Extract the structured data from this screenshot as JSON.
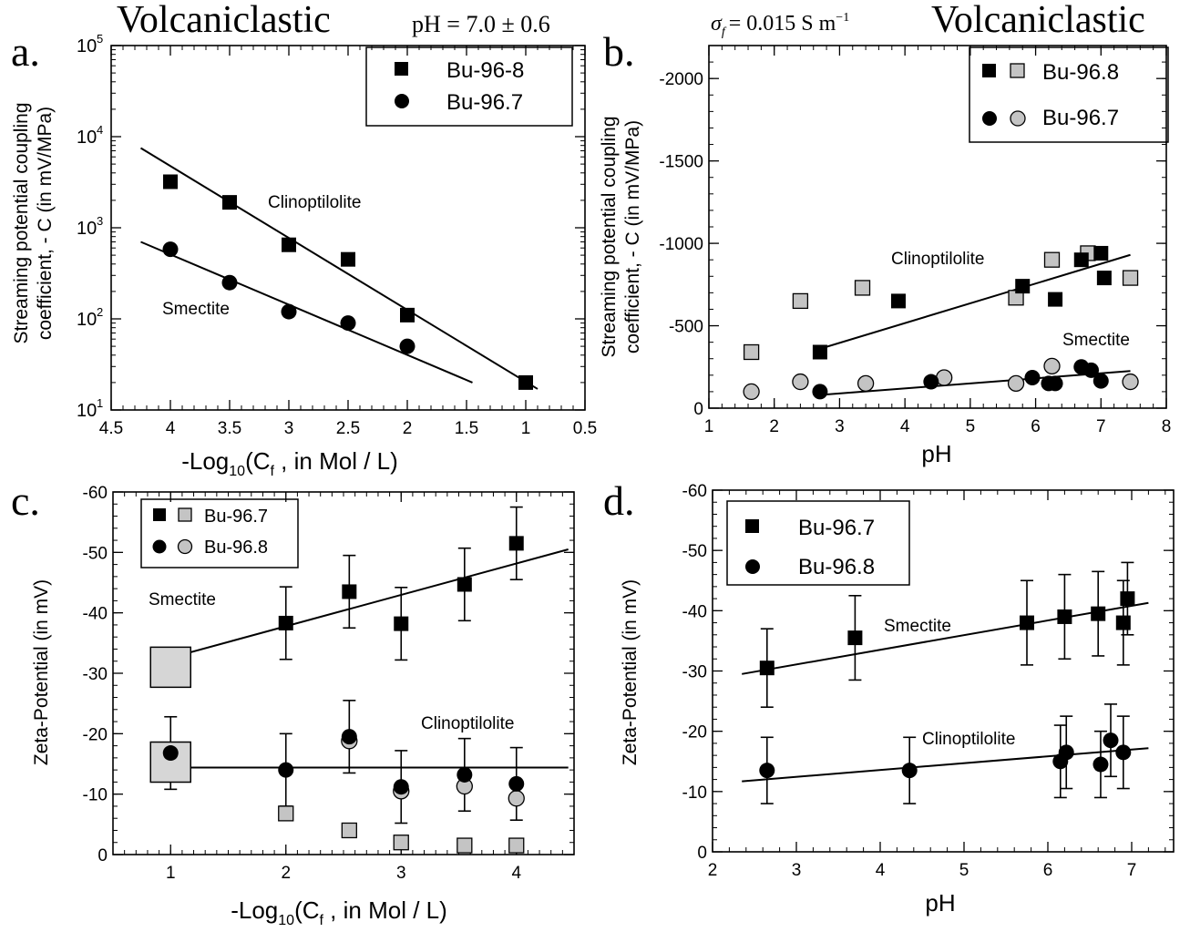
{
  "figure": {
    "panel_a_header": {
      "left": "Volcaniclastic",
      "right": "pH = 7.0 ± 0.6"
    },
    "panel_b_header": {
      "sigma_symbol": "σ",
      "sigma_sub": "f",
      "sigma_value": "= 0.015  S m",
      "sigma_exp": "−1",
      "right": "Volcaniclastic"
    }
  },
  "chart_data": [
    {
      "panel": "a.",
      "type": "scatter",
      "xlabel": "-Log10(Cf , in Mol / L)",
      "ylabel_line1": "Streaming potential coupling",
      "ylabel_line2": "coefficient, - C (in mV/MPa)",
      "xlim": [
        4.5,
        0.5
      ],
      "xticks": [
        "4.5",
        "4",
        "3.5",
        "3",
        "2.5",
        "2",
        "1.5",
        "1",
        "0.5"
      ],
      "yscale": "log",
      "ylim": [
        10,
        100000
      ],
      "yticks": [
        "10",
        "10",
        "10",
        "10",
        "10"
      ],
      "yticks_exp": [
        "1",
        "2",
        "3",
        "4",
        "5"
      ],
      "legend": {
        "position": "top-right",
        "entries": [
          "Bu-96-8",
          "Bu-96.7"
        ]
      },
      "annotations": [
        "Clinoptilolite",
        "Smectite"
      ],
      "series": [
        {
          "name": "Bu-96-8",
          "marker": "square-black",
          "x": [
            4,
            3.5,
            3,
            2.5,
            2,
            1
          ],
          "y": [
            3200,
            1900,
            650,
            450,
            110,
            20
          ]
        },
        {
          "name": "Bu-96.7",
          "marker": "circle-black",
          "x": [
            4,
            3.5,
            3,
            2.5,
            2
          ],
          "y": [
            580,
            250,
            120,
            90,
            50
          ]
        }
      ],
      "fit_lines": [
        {
          "x": [
            4.25,
            0.9
          ],
          "y": [
            7500,
            17
          ]
        },
        {
          "x": [
            4.25,
            1.45
          ],
          "y": [
            700,
            20
          ]
        }
      ]
    },
    {
      "panel": "b.",
      "type": "scatter",
      "xlabel": "pH",
      "ylabel_line1": "Streaming potential coupling",
      "ylabel_line2": "coefficient, - C (in mV/MPa)",
      "xlim": [
        1,
        8
      ],
      "xticks": [
        "1",
        "2",
        "3",
        "4",
        "5",
        "6",
        "7",
        "8"
      ],
      "ylim": [
        0,
        -2200
      ],
      "yticks": [
        "0",
        "-500",
        "-1000",
        "-1500",
        "-2000"
      ],
      "yticks_values": [
        0,
        -500,
        -1000,
        -1500,
        -2000
      ],
      "legend": {
        "position": "top-right",
        "entries": [
          "Bu-96.8",
          "Bu-96.7"
        ]
      },
      "annotations": [
        "Clinoptilolite",
        "Smectite"
      ],
      "series": [
        {
          "name": "Bu-96.8",
          "marker": "square-black",
          "x": [
            2.7,
            3.9,
            5.8,
            6.3,
            6.7,
            7.0,
            7.05
          ],
          "y": [
            -340,
            -650,
            -740,
            -660,
            -900,
            -940,
            -790
          ]
        },
        {
          "name": "Bu-96.8",
          "marker": "square-gray",
          "x": [
            1.65,
            2.4,
            3.35,
            5.7,
            6.25,
            6.8,
            7.45
          ],
          "y": [
            -340,
            -650,
            -730,
            -670,
            -900,
            -940,
            -790
          ]
        },
        {
          "name": "Bu-96.7",
          "marker": "circle-black",
          "x": [
            2.7,
            4.4,
            5.95,
            6.2,
            6.3,
            6.7,
            6.85,
            7.0
          ],
          "y": [
            -100,
            -160,
            -185,
            -150,
            -150,
            -250,
            -230,
            -165
          ]
        },
        {
          "name": "Bu-96.7",
          "marker": "circle-gray",
          "x": [
            1.65,
            2.4,
            3.4,
            4.6,
            5.7,
            6.25,
            7.45
          ],
          "y": [
            -100,
            -160,
            -150,
            -185,
            -150,
            -255,
            -160
          ]
        }
      ],
      "fit_lines": [
        {
          "x": [
            2.7,
            7.45
          ],
          "y": [
            -360,
            -930
          ]
        },
        {
          "x": [
            2.7,
            7.45
          ],
          "y": [
            -80,
            -225
          ]
        }
      ]
    },
    {
      "panel": "c.",
      "type": "scatter",
      "xlabel": "-Log10(Cf , in Mol / L)",
      "ylabel": "Zeta-Potential (in mV)",
      "xlim": [
        0.5,
        4.5
      ],
      "xticks": [
        "1",
        "2",
        "3",
        "4"
      ],
      "xticks_values": [
        1,
        2,
        3,
        4
      ],
      "ylim": [
        0,
        -60
      ],
      "yticks": [
        "0",
        "-10",
        "-20",
        "-30",
        "-40",
        "-50",
        "-60"
      ],
      "yticks_values": [
        0,
        -10,
        -20,
        -30,
        -40,
        -50,
        -60
      ],
      "legend": {
        "position": "top-left",
        "entries": [
          "Bu-96.7",
          "Bu-96.8"
        ]
      },
      "annotations": [
        "Smectite",
        "Clinoptilolite"
      ],
      "series": [
        {
          "name": "Bu-96.7",
          "marker": "square-black",
          "x": [
            2,
            2.55,
            3,
            3.55,
            4
          ],
          "y": [
            -38.3,
            -43.5,
            -38.2,
            -44.7,
            -51.5
          ],
          "err": [
            6,
            6,
            6,
            6,
            6
          ]
        },
        {
          "name": "Bu-96.7",
          "marker": "square-gray",
          "x": [
            2,
            2.55,
            3,
            3.55,
            4
          ],
          "y": [
            -6.8,
            -4,
            -2,
            -1.5,
            -1.5
          ]
        },
        {
          "name": "Bu-96.8",
          "marker": "circle-black",
          "x": [
            1,
            2,
            2.55,
            3,
            3.55,
            4
          ],
          "y": [
            -16.8,
            -14,
            -19.5,
            -11.2,
            -13.2,
            -11.7
          ],
          "err": [
            6,
            6,
            6,
            6,
            6,
            6
          ]
        },
        {
          "name": "Bu-96.8",
          "marker": "circle-gray",
          "x": [
            2.55,
            3,
            3.55,
            4
          ],
          "y": [
            -18.8,
            -10.5,
            -11.3,
            -9.3
          ]
        },
        {
          "name": "",
          "marker": "big-square-gray",
          "x": [
            1,
            1
          ],
          "y": [
            -31,
            -15.3
          ]
        }
      ],
      "fit_lines": [
        {
          "x": [
            0.85,
            4.45
          ],
          "y": [
            -31.8,
            -50.5
          ]
        },
        {
          "x": [
            0.85,
            4.45
          ],
          "y": [
            -14.4,
            -14.4
          ]
        }
      ]
    },
    {
      "panel": "d.",
      "type": "scatter",
      "xlabel": "pH",
      "ylabel": "Zeta-Potential (in mV)",
      "xlim": [
        2,
        7.5
      ],
      "xticks": [
        "2",
        "3",
        "4",
        "5",
        "6",
        "7"
      ],
      "xticks_values": [
        2,
        3,
        4,
        5,
        6,
        7
      ],
      "ylim": [
        0,
        -60
      ],
      "yticks": [
        "0",
        "-10",
        "-20",
        "-30",
        "-40",
        "-50",
        "-60"
      ],
      "yticks_values": [
        0,
        -10,
        -20,
        -30,
        -40,
        -50,
        -60
      ],
      "legend": {
        "position": "top-left",
        "entries": [
          "Bu-96.7",
          "Bu-96.8"
        ]
      },
      "annotations": [
        "Smectite",
        "Clinoptilolite"
      ],
      "series": [
        {
          "name": "Bu-96.7",
          "marker": "square-black",
          "x": [
            2.65,
            3.7,
            5.75,
            6.2,
            6.6,
            6.9,
            6.95
          ],
          "y": [
            -30.5,
            -35.5,
            -38,
            -39,
            -39.5,
            -38,
            -42
          ],
          "err": [
            6.5,
            7,
            7,
            7,
            7,
            7,
            6
          ]
        },
        {
          "name": "Bu-96.8",
          "marker": "circle-black",
          "x": [
            2.65,
            4.35,
            6.15,
            6.22,
            6.63,
            6.75,
            6.9
          ],
          "y": [
            -13.5,
            -13.5,
            -15,
            -16.5,
            -14.5,
            -18.5,
            -16.5
          ],
          "err": [
            5.5,
            5.5,
            6,
            6,
            5.5,
            6,
            6
          ]
        }
      ],
      "fit_lines": [
        {
          "x": [
            2.35,
            7.2
          ],
          "y": [
            -29.5,
            -41.3
          ]
        },
        {
          "x": [
            2.35,
            7.2
          ],
          "y": [
            -11.7,
            -17.2
          ]
        }
      ]
    }
  ]
}
